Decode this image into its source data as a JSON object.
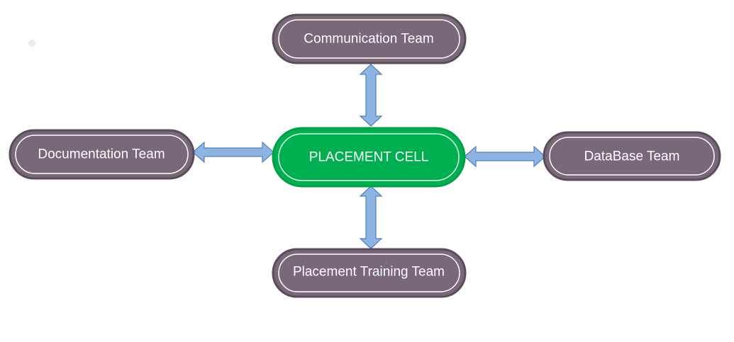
{
  "diagram": {
    "center": {
      "label": "PLACEMENT CELL"
    },
    "top": {
      "label": "Communication Team"
    },
    "left": {
      "label": "Documentation Team"
    },
    "right": {
      "label": "DataBase Team"
    },
    "bottom": {
      "label": "Placement Training Team"
    }
  },
  "colors": {
    "team_fill": "#786878",
    "team_border": "#5a4c5a",
    "center_fill": "#00b050",
    "center_border": "#00a048",
    "arrow_fill": "#8eb4e3",
    "arrow_stroke": "#4f81bd"
  }
}
